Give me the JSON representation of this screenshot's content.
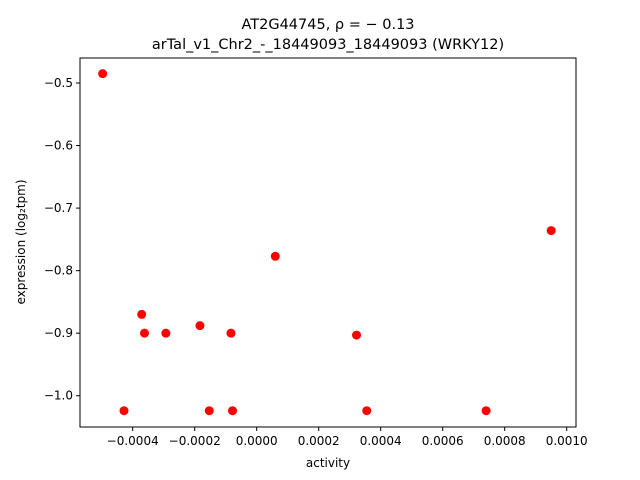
{
  "chart_data": {
    "type": "scatter",
    "title_line1": "AT2G44745, ρ = − 0.13",
    "title_line2": "arTal_v1_Chr2_-_18449093_18449093 (WRKY12)",
    "xlabel": "activity",
    "ylabel": "expression (log₂tpm)",
    "xlim": [
      -0.00057,
      0.00103
    ],
    "ylim": [
      -1.05,
      -0.46
    ],
    "grid": false,
    "point_color": "#ff0000",
    "x_ticks": [
      {
        "value": -0.0004,
        "label": "−0.0004"
      },
      {
        "value": -0.0002,
        "label": "−0.0002"
      },
      {
        "value": 0.0,
        "label": "0.0000"
      },
      {
        "value": 0.0002,
        "label": "0.0002"
      },
      {
        "value": 0.0004,
        "label": "0.0004"
      },
      {
        "value": 0.0006,
        "label": "0.0006"
      },
      {
        "value": 0.0008,
        "label": "0.0008"
      },
      {
        "value": 0.001,
        "label": "0.0010"
      }
    ],
    "y_ticks": [
      {
        "value": -0.5,
        "label": "−0.5"
      },
      {
        "value": -0.6,
        "label": "−0.6"
      },
      {
        "value": -0.7,
        "label": "−0.7"
      },
      {
        "value": -0.8,
        "label": "−0.8"
      },
      {
        "value": -0.9,
        "label": "−0.9"
      },
      {
        "value": -1.0,
        "label": "−1.0"
      }
    ],
    "points": [
      {
        "x": -0.000497,
        "y": -0.485
      },
      {
        "x": -0.000428,
        "y": -1.024
      },
      {
        "x": -0.000371,
        "y": -0.87
      },
      {
        "x": -0.000362,
        "y": -0.9
      },
      {
        "x": -0.000293,
        "y": -0.9
      },
      {
        "x": -0.000183,
        "y": -0.888
      },
      {
        "x": -0.000153,
        "y": -1.024
      },
      {
        "x": -8.3e-05,
        "y": -0.9
      },
      {
        "x": -7.8e-05,
        "y": -1.024
      },
      {
        "x": 6e-05,
        "y": -0.777
      },
      {
        "x": 0.000322,
        "y": -0.903
      },
      {
        "x": 0.000355,
        "y": -1.024
      },
      {
        "x": 0.00074,
        "y": -1.024
      },
      {
        "x": 0.00095,
        "y": -0.736
      }
    ]
  }
}
